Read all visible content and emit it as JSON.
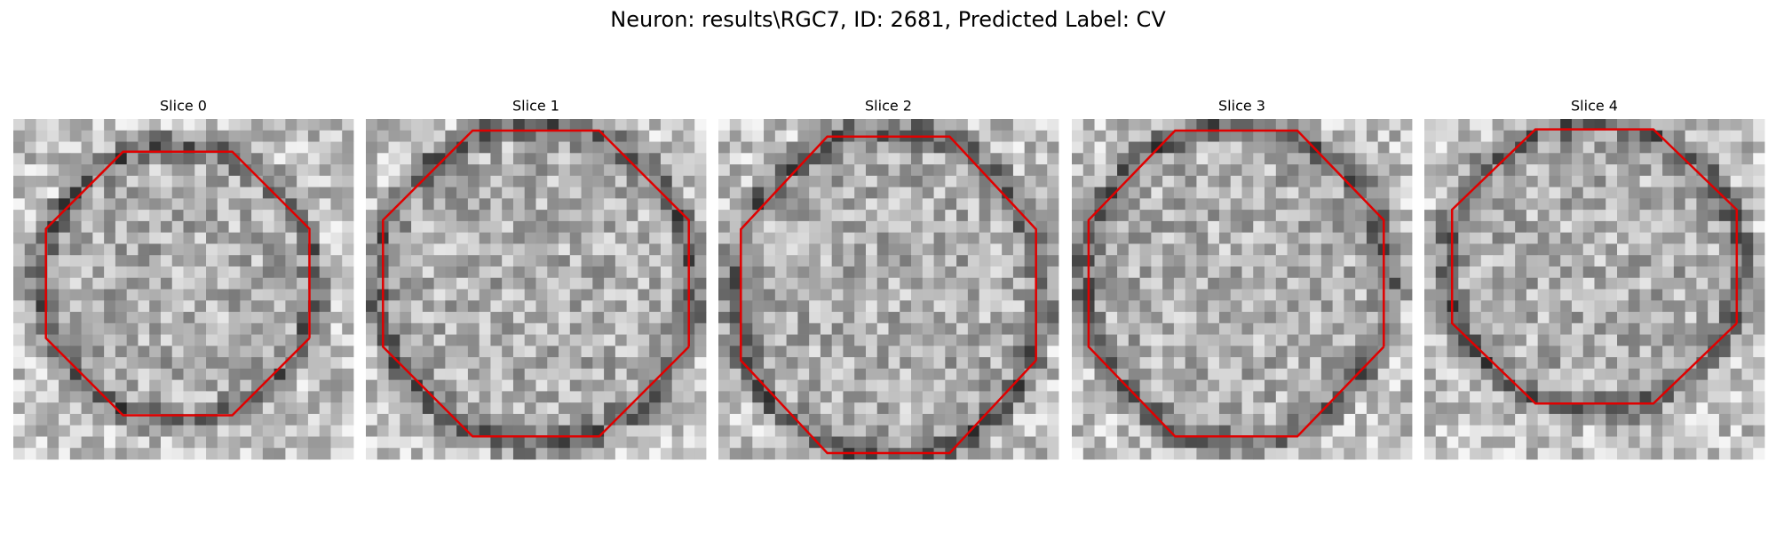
{
  "title": "Neuron: results\\RGC7, ID: 2681, Predicted Label: CV",
  "panels": [
    {
      "title": "Slice 0"
    },
    {
      "title": "Slice 1"
    },
    {
      "title": "Slice 2"
    },
    {
      "title": "Slice 3"
    },
    {
      "title": "Slice 4"
    }
  ]
}
